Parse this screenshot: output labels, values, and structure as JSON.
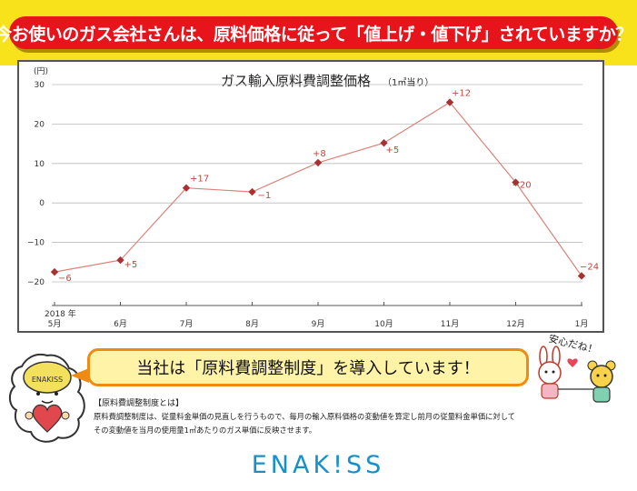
{
  "banner": {
    "text": "今お使いのガス会社さんは、原料価格に従って「値上げ・値下げ」されていますか？"
  },
  "chart_data": {
    "type": "line",
    "title": "ガス輸入原料費調整価格",
    "subtitle": "（1㎥当り）",
    "unit_label": "(円)",
    "year_label": "2018 年",
    "categories": [
      "5月",
      "6月",
      "7月",
      "8月",
      "9月",
      "10月",
      "11月",
      "12月",
      "1月"
    ],
    "values": [
      -17.5,
      -14.5,
      3.8,
      2.8,
      10.2,
      15.2,
      25.5,
      5.2,
      -18.5
    ],
    "data_labels": [
      "−6",
      "+5",
      "+17",
      "−1",
      "+8",
      "+5",
      "+12",
      "−20",
      "−24"
    ],
    "yticks": [
      30,
      20,
      10,
      0,
      -10,
      -20
    ],
    "ytick_labels": [
      "30",
      "20",
      "10",
      "0",
      "−10",
      "−20"
    ],
    "ylim": [
      -26,
      33
    ],
    "grid": true,
    "legend": "none",
    "line_color": "#d9837a",
    "marker_color": "#a83232",
    "label_color": "#b84a3e"
  },
  "callout": {
    "text": "当社は「原料費調整制度」を導入しています！"
  },
  "description": {
    "title": "【原料費調整制度とは】",
    "line1": "原料費調整制度は、従量料金単価の見直しを行うもので、毎月の輸入原料価格の変動値を算定し前月の従量料金単価に対して",
    "line2": "その変動値を当月の使用量1㎥あたりのガス単価に反映させます。"
  },
  "characters": {
    "speech": "安心だね！"
  },
  "mascot": {
    "text": "ENAKISS"
  },
  "logo": {
    "text": "ENAK!SS"
  }
}
